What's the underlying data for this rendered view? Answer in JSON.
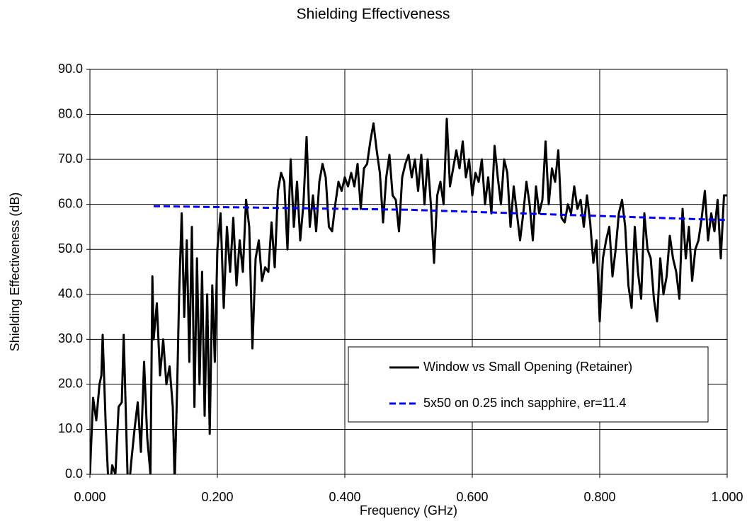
{
  "chart_data": {
    "type": "line",
    "title": "Shielding Effectiveness",
    "x_label": "Frequency (GHz)",
    "y_label": "Shielding Effectiveness (dB)",
    "xlim": [
      0,
      1
    ],
    "ylim": [
      0,
      90
    ],
    "xticks": [
      {
        "value": 0,
        "label": "0.000"
      },
      {
        "value": 0.2,
        "label": "0.200"
      },
      {
        "value": 0.4,
        "label": "0.400"
      },
      {
        "value": 0.6,
        "label": "0.600"
      },
      {
        "value": 0.8,
        "label": "0.800"
      },
      {
        "value": 1,
        "label": "1.000"
      }
    ],
    "yticks": [
      {
        "value": 0,
        "label": "0.0"
      },
      {
        "value": 10,
        "label": "10.0"
      },
      {
        "value": 20,
        "label": "20.0"
      },
      {
        "value": 30,
        "label": "30.0"
      },
      {
        "value": 40,
        "label": "40.0"
      },
      {
        "value": 50,
        "label": "50.0"
      },
      {
        "value": 60,
        "label": "60.0"
      },
      {
        "value": 70,
        "label": "70.0"
      },
      {
        "value": 80,
        "label": "80.0"
      },
      {
        "value": 90,
        "label": "90.0"
      }
    ],
    "grid": true,
    "legend": "lower right",
    "series": [
      {
        "name": "Window vs Small Opening (Retainer)",
        "color": "#000000",
        "dash": false,
        "x": [
          0,
          0.005,
          0.01,
          0.015,
          0.018,
          0.02,
          0.025,
          0.03,
          0.035,
          0.04,
          0.045,
          0.05,
          0.053,
          0.058,
          0.06,
          0.065,
          0.07,
          0.075,
          0.08,
          0.085,
          0.09,
          0.095,
          0.098,
          0.1,
          0.105,
          0.11,
          0.115,
          0.12,
          0.125,
          0.13,
          0.133,
          0.137,
          0.14,
          0.144,
          0.148,
          0.152,
          0.156,
          0.16,
          0.164,
          0.168,
          0.172,
          0.176,
          0.18,
          0.184,
          0.188,
          0.192,
          0.196,
          0.2,
          0.205,
          0.21,
          0.215,
          0.22,
          0.225,
          0.23,
          0.235,
          0.24,
          0.245,
          0.25,
          0.255,
          0.26,
          0.265,
          0.27,
          0.275,
          0.28,
          0.285,
          0.29,
          0.295,
          0.3,
          0.305,
          0.31,
          0.315,
          0.32,
          0.325,
          0.33,
          0.335,
          0.34,
          0.345,
          0.35,
          0.355,
          0.36,
          0.365,
          0.37,
          0.375,
          0.38,
          0.385,
          0.39,
          0.395,
          0.4,
          0.405,
          0.41,
          0.415,
          0.42,
          0.425,
          0.43,
          0.435,
          0.44,
          0.445,
          0.45,
          0.455,
          0.46,
          0.465,
          0.47,
          0.475,
          0.48,
          0.485,
          0.49,
          0.495,
          0.5,
          0.505,
          0.51,
          0.515,
          0.52,
          0.525,
          0.53,
          0.535,
          0.54,
          0.545,
          0.55,
          0.555,
          0.56,
          0.565,
          0.57,
          0.575,
          0.58,
          0.585,
          0.59,
          0.595,
          0.6,
          0.605,
          0.61,
          0.615,
          0.62,
          0.625,
          0.63,
          0.635,
          0.64,
          0.645,
          0.65,
          0.655,
          0.66,
          0.665,
          0.67,
          0.675,
          0.68,
          0.685,
          0.69,
          0.695,
          0.7,
          0.705,
          0.71,
          0.715,
          0.72,
          0.725,
          0.73,
          0.735,
          0.74,
          0.745,
          0.75,
          0.755,
          0.76,
          0.765,
          0.77,
          0.775,
          0.78,
          0.785,
          0.79,
          0.795,
          0.8,
          0.805,
          0.81,
          0.815,
          0.82,
          0.825,
          0.83,
          0.835,
          0.84,
          0.845,
          0.85,
          0.855,
          0.86,
          0.865,
          0.87,
          0.875,
          0.88,
          0.885,
          0.89,
          0.895,
          0.9,
          0.905,
          0.91,
          0.915,
          0.92,
          0.925,
          0.93,
          0.935,
          0.94,
          0.945,
          0.95,
          0.955,
          0.96,
          0.965,
          0.97,
          0.975,
          0.98,
          0.985,
          0.99,
          0.995,
          1
        ],
        "values": [
          0,
          17,
          12,
          20,
          22,
          31,
          10,
          -5,
          2,
          0,
          15,
          16,
          31,
          5,
          -5,
          3,
          10,
          16,
          5,
          25,
          8,
          0,
          44,
          30,
          38,
          22,
          30,
          20,
          24,
          15,
          -2,
          20,
          40,
          58,
          35,
          52,
          25,
          55,
          15,
          48,
          20,
          45,
          13,
          40,
          9,
          42,
          25,
          50,
          58,
          37,
          55,
          45,
          57,
          42,
          52,
          45,
          61,
          55,
          28,
          48,
          52,
          43,
          46,
          45,
          56,
          46,
          63,
          67,
          65,
          50,
          70,
          55,
          65,
          52,
          60,
          75,
          55,
          62,
          54,
          65,
          69,
          66,
          55,
          54,
          60,
          65,
          63,
          66,
          64,
          67,
          64,
          69,
          59,
          68,
          69,
          74,
          78,
          72,
          67,
          56,
          66,
          71,
          62,
          61,
          54,
          66,
          69,
          71,
          66,
          70,
          63,
          71,
          60,
          70,
          60,
          47,
          62,
          65,
          60,
          79,
          64,
          68,
          72,
          68,
          74,
          66,
          70,
          62,
          67,
          65,
          70,
          60,
          66,
          58,
          73,
          66,
          60,
          70,
          67,
          55,
          64,
          58,
          52,
          58,
          65,
          60,
          52,
          64,
          58,
          61,
          74,
          60,
          68,
          65,
          72,
          57,
          56,
          60,
          58,
          64,
          59,
          61,
          55,
          62,
          56,
          47,
          52,
          34,
          48,
          52,
          55,
          44,
          50,
          58,
          61,
          55,
          42,
          37,
          55,
          45,
          39,
          58,
          50,
          48,
          39,
          34,
          48,
          40,
          44,
          53,
          48,
          45,
          39,
          59,
          48,
          55,
          43,
          50,
          52,
          57,
          63,
          52,
          58,
          54,
          61,
          48,
          62,
          62
        ]
      },
      {
        "name": "5x50 on 0.25 inch sapphire, er=11.4",
        "color": "#0000ff",
        "dash": true,
        "x": [
          0.1,
          0.5,
          1
        ],
        "values": [
          59.6,
          58.8,
          56.5
        ]
      }
    ]
  }
}
